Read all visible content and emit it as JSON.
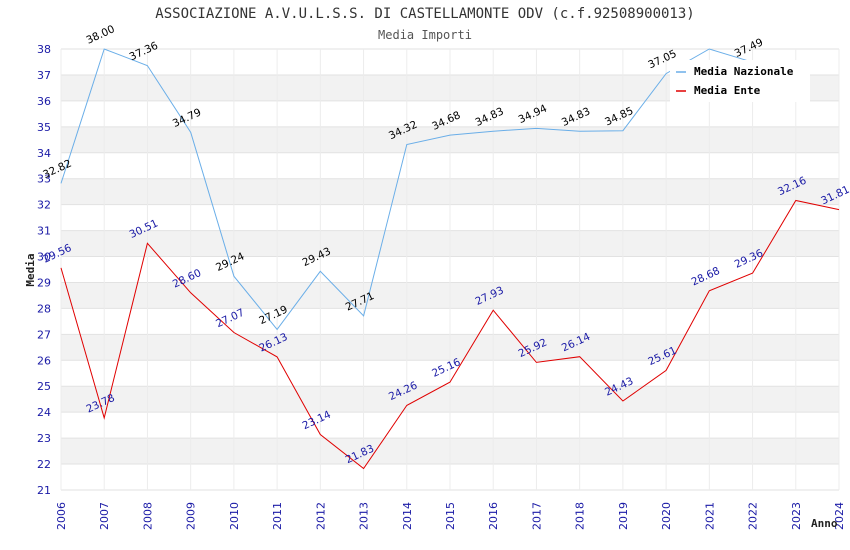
{
  "chart_data": {
    "type": "line",
    "title": "ASSOCIAZIONE A.V.U.L.S.S. DI CASTELLAMONTE ODV (c.f.92508900013)",
    "subtitle": "Media Importi",
    "xlabel": "Anno",
    "ylabel": "Media",
    "ylim": [
      21,
      38
    ],
    "y_ticks": [
      21,
      22,
      23,
      24,
      25,
      26,
      27,
      28,
      29,
      30,
      31,
      32,
      33,
      34,
      35,
      36,
      37,
      38
    ],
    "categories": [
      "2006",
      "2007",
      "2008",
      "2009",
      "2010",
      "2011",
      "2012",
      "2013",
      "2014",
      "2015",
      "2016",
      "2017",
      "2018",
      "2019",
      "2020",
      "2021",
      "2022",
      "2023",
      "2024"
    ],
    "series": [
      {
        "name": "Media Nazionale",
        "color": "#6aaee8",
        "label_color": "#000000",
        "values": [
          32.82,
          38.0,
          37.36,
          34.79,
          29.24,
          27.19,
          29.43,
          27.71,
          34.32,
          34.68,
          34.83,
          34.94,
          34.83,
          34.85,
          37.05,
          38.5,
          37.49,
          null,
          null
        ],
        "labels": [
          "32.82",
          "38.00",
          "37.36",
          "34.79",
          "29.24",
          "27.19",
          "29.43",
          "27.71",
          "34.32",
          "34.68",
          "34.83",
          "34.94",
          "34.83",
          "34.85",
          "37.05",
          "",
          "37.49",
          "",
          ""
        ]
      },
      {
        "name": "Media Ente",
        "color": "#e00000",
        "label_color": "#1a1aa6",
        "values": [
          29.56,
          23.78,
          30.51,
          28.6,
          27.07,
          26.13,
          23.14,
          21.83,
          24.26,
          25.16,
          27.93,
          25.92,
          26.14,
          24.43,
          25.61,
          28.68,
          29.36,
          32.16,
          31.81
        ],
        "labels": [
          "29.56",
          "23.78",
          "30.51",
          "28.60",
          "27.07",
          "26.13",
          "23.14",
          "21.83",
          "24.26",
          "25.16",
          "27.93",
          "25.92",
          "26.14",
          "24.43",
          "25.61",
          "28.68",
          "29.36",
          "32.16",
          "31.81"
        ]
      }
    ],
    "legend_position": "top-right",
    "grid": true
  }
}
